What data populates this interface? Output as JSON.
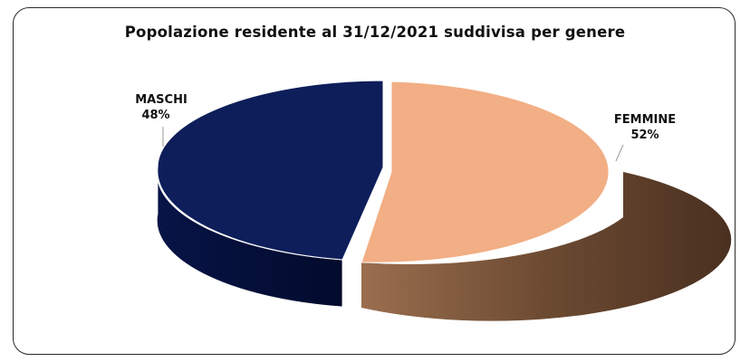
{
  "chart_data": {
    "type": "pie",
    "title": "Popolazione residente al 31/12/2021 suddivisa per genere",
    "slices": [
      {
        "label": "FEMMINE",
        "pct_label": "52%",
        "value": 52,
        "color": "#F2AE84",
        "side_color": "#6E4A30"
      },
      {
        "label": "MASCHI",
        "pct_label": "48%",
        "value": 48,
        "color": "#0D1E5A",
        "side_color": "#061036"
      }
    ]
  }
}
